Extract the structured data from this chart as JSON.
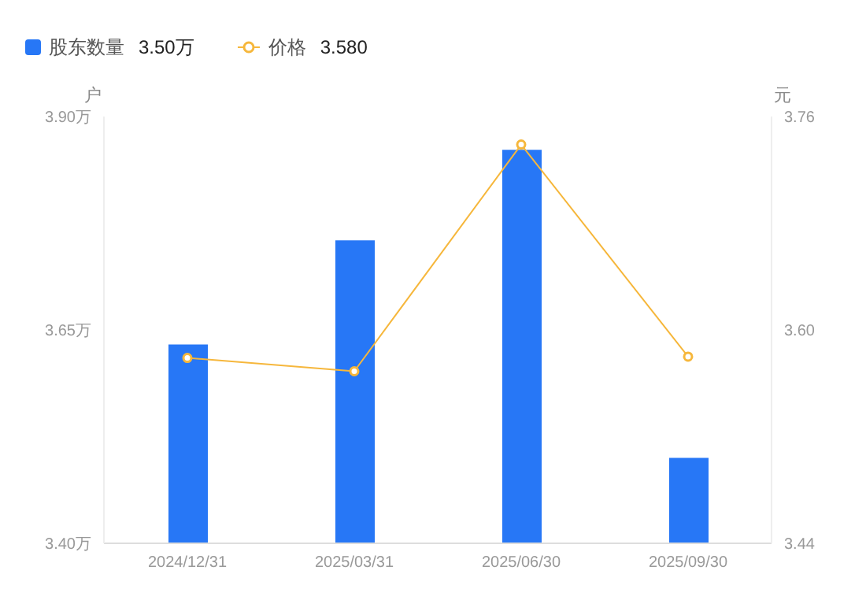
{
  "chart_data": {
    "type": "bar",
    "ylabel": "户",
    "y2label": "元",
    "categories": [
      "2024/12/31",
      "2025/03/31",
      "2025/06/30",
      "2025/09/30"
    ],
    "series": [
      {
        "name": "股东数量",
        "color": "#2777f6",
        "values": [
          3.633,
          3.755,
          3.861,
          3.5
        ]
      },
      {
        "name": "价格",
        "type": "line",
        "axis": "y2",
        "color": "#f6b73c",
        "values": [
          3.579,
          3.569,
          3.739,
          3.58
        ]
      }
    ],
    "annotations": [
      "3.50万",
      "3.580"
    ],
    "ylim": [
      3.4,
      3.9
    ],
    "yticks": [
      {
        "value": 3.4,
        "label": "3.40万"
      },
      {
        "value": 3.65,
        "label": "3.65万"
      },
      {
        "value": 3.9,
        "label": "3.90万"
      }
    ],
    "y2lim": [
      3.44,
      3.76
    ],
    "y2ticks": [
      {
        "value": 3.44,
        "label": "3.44"
      },
      {
        "value": 3.6,
        "label": "3.60"
      },
      {
        "value": 3.76,
        "label": "3.76"
      }
    ],
    "grid": false,
    "legend": "top left",
    "marker": "circle",
    "line_style": "solid"
  }
}
